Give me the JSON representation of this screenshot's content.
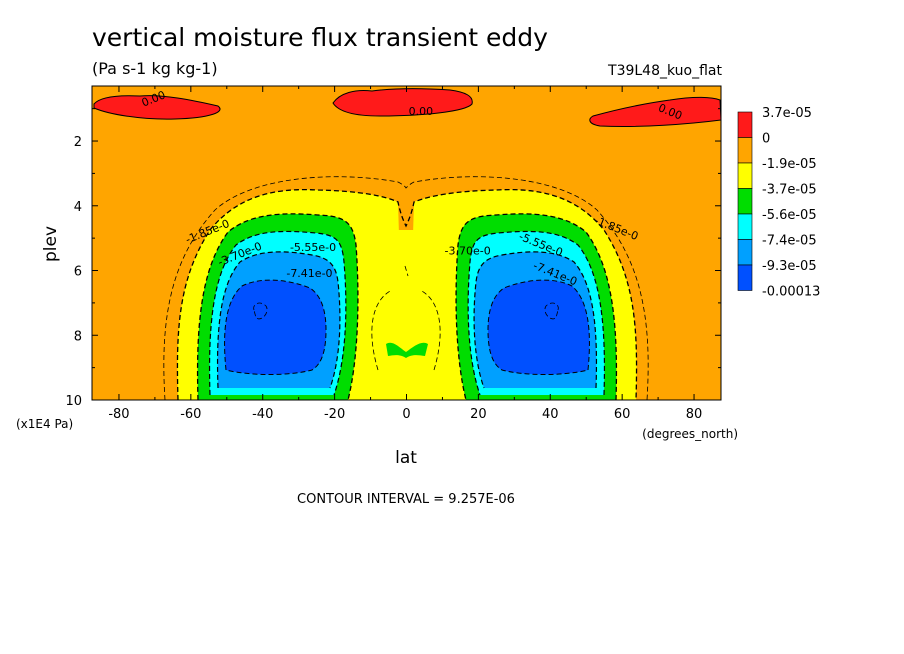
{
  "title": "vertical moisture flux transient eddy",
  "units": "(Pa s-1 kg kg-1)",
  "run_id": "T39L48_kuo_flat",
  "contour_interval": "CONTOUR INTERVAL = 9.257E-06",
  "colors": {
    "red": "#ff1a1a",
    "orange": "#ffa500",
    "yellow": "#ffff00",
    "green": "#00dd00",
    "cyan": "#00ffff",
    "sky": "#00a0ff",
    "blue": "#0050ff"
  },
  "chart_data": {
    "type": "heatmap",
    "title": "vertical moisture flux transient eddy",
    "xlabel": "lat",
    "xunit": "(degrees_north)",
    "ylabel": "plev",
    "yunit": "(x1E4 Pa)",
    "xlim": [
      -87.5,
      87.5
    ],
    "ylim": [
      10,
      0.3
    ],
    "xticks": [
      -80,
      -60,
      -40,
      -20,
      0,
      20,
      40,
      60,
      80
    ],
    "yticks": [
      2,
      4,
      6,
      8,
      10
    ],
    "colorbar": {
      "labels": [
        "3.7e-05",
        "0",
        "-1.9e-05",
        "-3.7e-05",
        "-5.6e-05",
        "-7.4e-05",
        "-9.3e-05",
        "-0.00013"
      ],
      "colors": [
        "#ff1a1a",
        "#ffa500",
        "#ffff00",
        "#00dd00",
        "#00ffff",
        "#00a0ff",
        "#0050ff"
      ]
    },
    "contour_labels": [
      {
        "text": "0.00",
        "lat": -70,
        "plev": 0.8
      },
      {
        "text": "0.00",
        "lat": 4,
        "plev": 1.2
      },
      {
        "text": "0.00",
        "lat": 73,
        "plev": 1.2
      },
      {
        "text": "-1.85e-0",
        "lat": -55,
        "plev": 4.9
      },
      {
        "text": "-3.70e-0",
        "lat": -46,
        "plev": 5.6
      },
      {
        "text": "-5.55e-0",
        "lat": -26,
        "plev": 5.4
      },
      {
        "text": "-7.41e-0",
        "lat": -27,
        "plev": 6.2
      },
      {
        "text": "-3.70e-0",
        "lat": 17,
        "plev": 5.5
      },
      {
        "text": "-5.55e-0",
        "lat": 37,
        "plev": 5.3
      },
      {
        "text": "-7.41e-0",
        "lat": 41,
        "plev": 6.2
      },
      {
        "text": "-1.85e-0",
        "lat": 58,
        "plev": 4.8
      }
    ],
    "features": [
      {
        "range": "0 to 3.7e-05",
        "lat": [
          -87,
          -53
        ],
        "plev": [
          0.3,
          1.4
        ]
      },
      {
        "range": "0 to 3.7e-05",
        "lat": [
          -19,
          19
        ],
        "plev": [
          0.3,
          1.2
        ]
      },
      {
        "range": "0 to 3.7e-05",
        "lat": [
          52,
          87
        ],
        "plev": [
          0.3,
          1.3
        ]
      },
      {
        "range": "-9.3e-05 to -0.00013",
        "lat": [
          -47,
          -23
        ],
        "plev": [
          6.6,
          9.3
        ]
      },
      {
        "range": "-9.3e-05 to -0.00013",
        "lat": [
          23,
          47
        ],
        "plev": [
          6.6,
          9.3
        ]
      },
      {
        "range": "-3.7e-05 to -5.6e-05",
        "lat": [
          -5,
          5
        ],
        "plev": [
          8.1,
          8.6
        ]
      }
    ]
  }
}
